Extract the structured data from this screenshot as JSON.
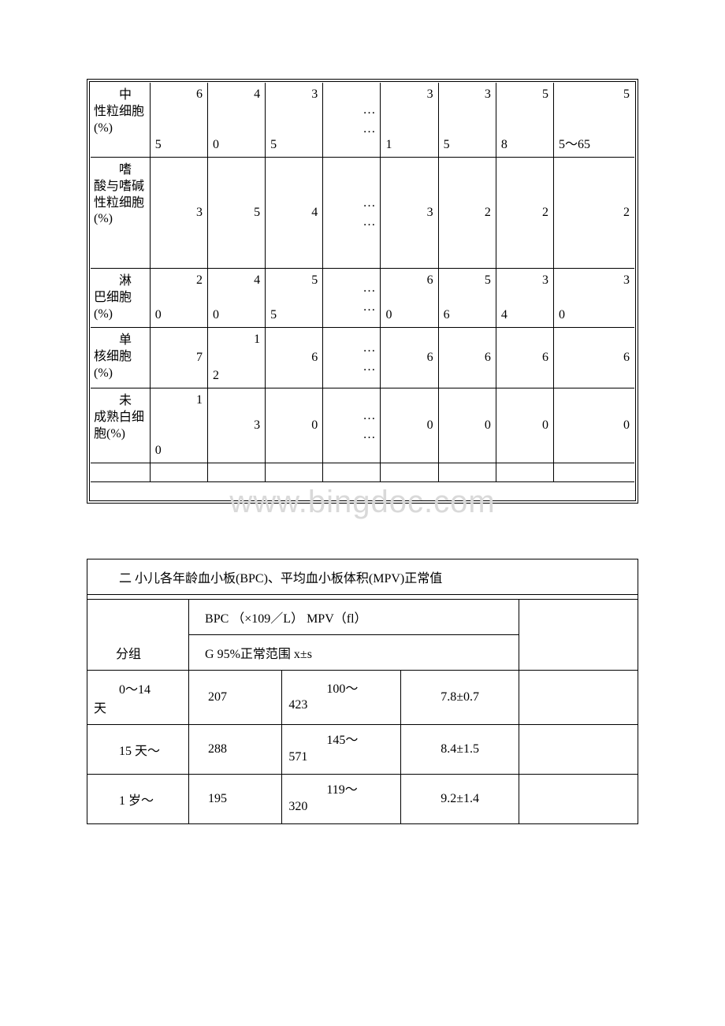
{
  "table1": {
    "rows": [
      {
        "label": "中性粒细胞(%)",
        "cells": [
          {
            "type": "split",
            "tr": "6",
            "bl": "5"
          },
          {
            "type": "split",
            "tr": "4",
            "bl": "0"
          },
          {
            "type": "split",
            "tr": "3",
            "bl": "5"
          },
          {
            "type": "ellipsis"
          },
          {
            "type": "split",
            "tr": "3",
            "bl": "1"
          },
          {
            "type": "split",
            "tr": "3",
            "bl": "5"
          },
          {
            "type": "split",
            "tr": "5",
            "bl": "8"
          },
          {
            "type": "split",
            "tr": "5",
            "bl": "5～65"
          }
        ]
      },
      {
        "label": "嗜酸与嗜碱性粒细胞(%)",
        "cells": [
          {
            "type": "center",
            "v": "3"
          },
          {
            "type": "center",
            "v": "5"
          },
          {
            "type": "center",
            "v": "4"
          },
          {
            "type": "ellipsis"
          },
          {
            "type": "center",
            "v": "3"
          },
          {
            "type": "center",
            "v": "2"
          },
          {
            "type": "center",
            "v": "2"
          },
          {
            "type": "center",
            "v": "2"
          }
        ]
      },
      {
        "label": "淋巴细胞(%)",
        "cells": [
          {
            "type": "split",
            "tr": "2",
            "bl": "0"
          },
          {
            "type": "split",
            "tr": "4",
            "bl": "0"
          },
          {
            "type": "split",
            "tr": "5",
            "bl": "5"
          },
          {
            "type": "ellipsis"
          },
          {
            "type": "split",
            "tr": "6",
            "bl": "0"
          },
          {
            "type": "split",
            "tr": "5",
            "bl": "6"
          },
          {
            "type": "split",
            "tr": "3",
            "bl": "4"
          },
          {
            "type": "split",
            "tr": "3",
            "bl": "0"
          }
        ]
      },
      {
        "label": "单核细胞(%)",
        "cells": [
          {
            "type": "center",
            "v": "7"
          },
          {
            "type": "split",
            "tr": "1",
            "bl": "2"
          },
          {
            "type": "center",
            "v": "6"
          },
          {
            "type": "ellipsis"
          },
          {
            "type": "center",
            "v": "6"
          },
          {
            "type": "center",
            "v": "6"
          },
          {
            "type": "center",
            "v": "6"
          },
          {
            "type": "center",
            "v": "6"
          }
        ]
      },
      {
        "label": "未成熟白细胞(%)",
        "cells": [
          {
            "type": "split",
            "tr": "1",
            "bl": "0"
          },
          {
            "type": "center",
            "v": "3"
          },
          {
            "type": "center",
            "v": "0"
          },
          {
            "type": "ellipsis"
          },
          {
            "type": "center",
            "v": "0"
          },
          {
            "type": "center",
            "v": "0"
          },
          {
            "type": "center",
            "v": "0"
          },
          {
            "type": "center",
            "v": "0"
          }
        ]
      }
    ]
  },
  "table2": {
    "title": "二 小儿各年龄血小板(BPC)、平均血小板体积(MPV)正常值",
    "header_line1": "BPC （×109／L） MPV（fl）",
    "header_line2": "G 95%正常范围 x±s",
    "group_label": "分组",
    "rows": [
      {
        "group_top": "0～14",
        "group_bottom": "天",
        "bpc": "207",
        "range_top": "100～",
        "range_bottom": "423",
        "mpv": "7.8±0.7"
      },
      {
        "group_top": "15 天～",
        "group_bottom": "",
        "bpc": "288",
        "range_top": "145～",
        "range_bottom": "571",
        "mpv": "8.4±1.5"
      },
      {
        "group_top": "1 岁～",
        "group_bottom": "",
        "bpc": "195",
        "range_top": "119～",
        "range_bottom": "320",
        "mpv": "9.2±1.4"
      }
    ]
  },
  "watermark": "www.bingdoc.com",
  "ellipsis": "……"
}
